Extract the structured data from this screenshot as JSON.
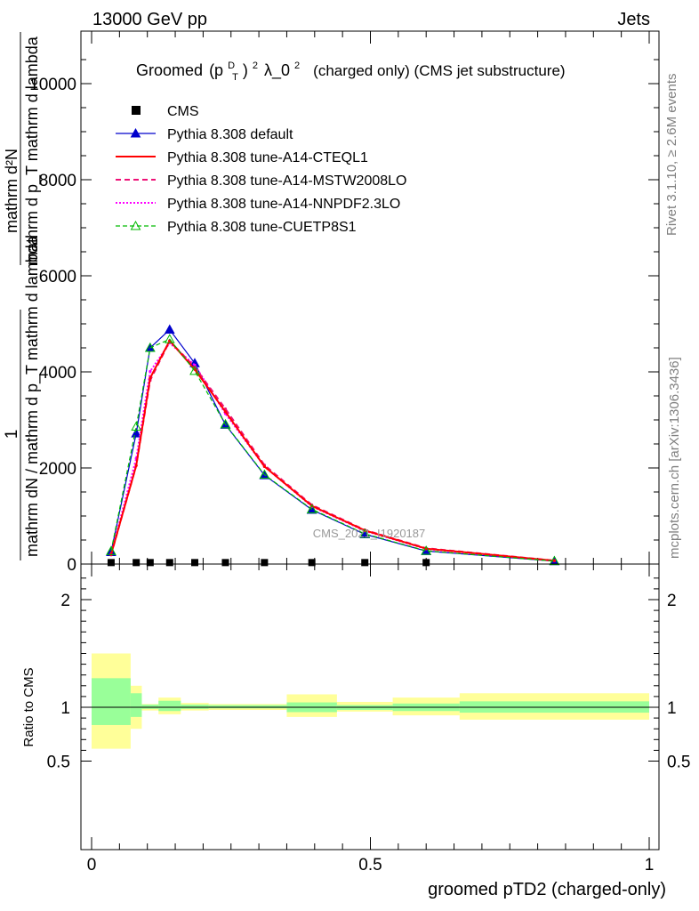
{
  "header": {
    "left": "13000 GeV pp",
    "right": "Jets"
  },
  "side_labels": {
    "rivet": "Rivet 3.1.10, ≥ 2.6M events",
    "mcplots": "mcplots.cern.ch [arXiv:1306.3436]"
  },
  "watermark": "CMS_2021_I1920187",
  "colors": {
    "cms": "#000000",
    "default": "#0000cc",
    "a14_cteql1": "#ff0000",
    "a14_mstw": "#ee1177",
    "a14_nnpdf": "#ff00ff",
    "cuetp8s1": "#00bb00",
    "band_inner": "#99ff99",
    "band_outer": "#ffff99"
  },
  "chart_data": [
    {
      "type": "line",
      "title": {
        "pre": "Groomed",
        "formula_main1": "(p",
        "formula_sub": "T",
        "formula_sup": "D",
        "formula_main2": ")",
        "formula_sup2": "2",
        "formula_main3": "λ_0",
        "formula_sup3": "2",
        "post": "(charged only) (CMS jet substructure)"
      },
      "ylabel_fraction": {
        "top_numerator": "1",
        "top_denominator": "mathrm dN / mathrm d p_T mathrm d lambda",
        "bottom_numerator": "mathrm d²N",
        "bottom_denominator": "mathrm d p_T mathrm d lambda"
      },
      "ylim": [
        0,
        11000
      ],
      "xlim": [
        0,
        1
      ],
      "yticks": [
        {
          "value": 0,
          "label": "0"
        },
        {
          "value": 2000,
          "label": "2000"
        },
        {
          "value": 4000,
          "label": "4000"
        },
        {
          "value": 6000,
          "label": "6000"
        },
        {
          "value": 8000,
          "label": "8000"
        },
        {
          "value": 10000,
          "label": "10000"
        }
      ],
      "legend": [
        {
          "key": "cms",
          "label": "CMS"
        },
        {
          "key": "default",
          "label": "Pythia 8.308 default"
        },
        {
          "key": "a14_cteql1",
          "label": "Pythia 8.308 tune-A14-CTEQL1"
        },
        {
          "key": "a14_mstw",
          "label": "Pythia 8.308 tune-A14-MSTW2008LO"
        },
        {
          "key": "a14_nnpdf",
          "label": "Pythia 8.308 tune-A14-NNPDF2.3LO"
        },
        {
          "key": "cuetp8s1",
          "label": "Pythia 8.308 tune-CUETP8S1"
        }
      ],
      "legend_position": "top-left",
      "series": [
        {
          "key": "cms",
          "x": [
            0.035,
            0.08,
            0.105,
            0.14,
            0.185,
            0.24,
            0.31,
            0.395,
            0.49,
            0.6
          ],
          "y": [
            12,
            12,
            12,
            12,
            12,
            12,
            12,
            12,
            12,
            12
          ]
        },
        {
          "key": "default",
          "x": [
            0.035,
            0.08,
            0.105,
            0.14,
            0.185,
            0.24,
            0.31,
            0.395,
            0.49,
            0.6,
            0.83
          ],
          "y": [
            250,
            2720,
            4500,
            4880,
            4180,
            2900,
            1850,
            1130,
            620,
            270,
            60
          ]
        },
        {
          "key": "a14_cteql1",
          "x": [
            0.035,
            0.08,
            0.105,
            0.14,
            0.185,
            0.24,
            0.31,
            0.395,
            0.49,
            0.6,
            0.83
          ],
          "y": [
            200,
            2050,
            3870,
            4650,
            4050,
            3170,
            2030,
            1210,
            700,
            320,
            70
          ]
        },
        {
          "key": "a14_mstw",
          "x": [
            0.035,
            0.08,
            0.105,
            0.14,
            0.185,
            0.24,
            0.31,
            0.395,
            0.49,
            0.6,
            0.83
          ],
          "y": [
            190,
            2050,
            3820,
            4640,
            4100,
            3230,
            2060,
            1230,
            710,
            330,
            72
          ]
        },
        {
          "key": "a14_nnpdf",
          "x": [
            0.035,
            0.08,
            0.105,
            0.14,
            0.185,
            0.24,
            0.31,
            0.395,
            0.49,
            0.6,
            0.83
          ],
          "y": [
            210,
            2200,
            4010,
            4600,
            4140,
            3130,
            2030,
            1200,
            690,
            315,
            68
          ]
        },
        {
          "key": "cuetp8s1",
          "x": [
            0.035,
            0.08,
            0.105,
            0.14,
            0.185,
            0.24,
            0.31,
            0.395,
            0.49,
            0.6,
            0.83
          ],
          "y": [
            270,
            2860,
            4500,
            4680,
            4020,
            2910,
            1860,
            1140,
            630,
            275,
            62
          ]
        }
      ]
    },
    {
      "type": "area",
      "ylabel": "Ratio to CMS",
      "xlabel": "groomed pTD2 (charged-only)",
      "xlim": [
        0,
        1
      ],
      "ylim": [
        0.35,
        2.3
      ],
      "yticks": [
        {
          "value": 0.5,
          "label": "0.5"
        },
        {
          "value": 1,
          "label": "1"
        },
        {
          "value": 2,
          "label": "2"
        }
      ],
      "xticks": [
        {
          "value": 0,
          "label": "0"
        },
        {
          "value": 0.5,
          "label": "0.5"
        },
        {
          "value": 1,
          "label": "1"
        }
      ],
      "bins": [
        {
          "lo": 0.0,
          "hi": 0.07,
          "inner": [
            0.835,
            1.27
          ],
          "outer": [
            0.615,
            1.5
          ]
        },
        {
          "lo": 0.07,
          "hi": 0.09,
          "inner": [
            0.91,
            1.13
          ],
          "outer": [
            0.8,
            1.2
          ]
        },
        {
          "lo": 0.09,
          "hi": 0.12,
          "inner": [
            0.985,
            1.025
          ],
          "outer": [
            0.97,
            1.03
          ]
        },
        {
          "lo": 0.12,
          "hi": 0.16,
          "inner": [
            0.965,
            1.06
          ],
          "outer": [
            0.935,
            1.09
          ]
        },
        {
          "lo": 0.16,
          "hi": 0.21,
          "inner": [
            0.985,
            1.025
          ],
          "outer": [
            0.97,
            1.04
          ]
        },
        {
          "lo": 0.21,
          "hi": 0.35,
          "inner": [
            0.99,
            1.02
          ],
          "outer": [
            0.975,
            1.03
          ]
        },
        {
          "lo": 0.35,
          "hi": 0.44,
          "inner": [
            0.955,
            1.045
          ],
          "outer": [
            0.91,
            1.12
          ]
        },
        {
          "lo": 0.44,
          "hi": 0.54,
          "inner": [
            0.975,
            1.02
          ],
          "outer": [
            0.96,
            1.05
          ]
        },
        {
          "lo": 0.54,
          "hi": 0.66,
          "inner": [
            0.965,
            1.035
          ],
          "outer": [
            0.925,
            1.09
          ]
        },
        {
          "lo": 0.66,
          "hi": 1.0,
          "inner": [
            0.95,
            1.055
          ],
          "outer": [
            0.885,
            1.13
          ]
        }
      ]
    }
  ]
}
